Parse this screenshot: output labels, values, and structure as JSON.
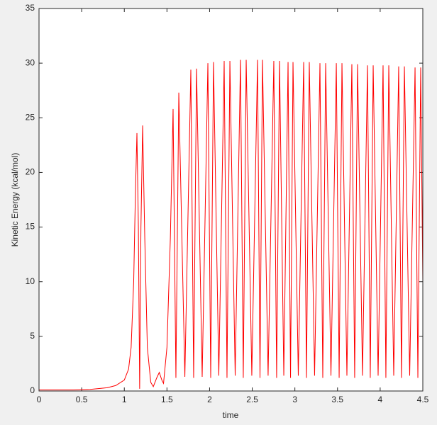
{
  "chart_data": {
    "type": "line",
    "xlabel": "time",
    "ylabel": "Kinetic Energy (kcal/mol)",
    "xlim": [
      0,
      4.5
    ],
    "ylim": [
      0,
      35
    ],
    "xticks": [
      0,
      0.5,
      1,
      1.5,
      2,
      2.5,
      3,
      3.5,
      4,
      4.5
    ],
    "yticks": [
      0,
      5,
      10,
      15,
      20,
      25,
      30,
      35
    ],
    "grid": false,
    "series": [
      {
        "color": "#ff0000",
        "x": [
          0,
          0.2,
          0.4,
          0.6,
          0.8,
          0.9,
          1.0,
          1.05,
          1.08,
          1.11,
          1.13,
          1.148,
          1.165,
          1.18,
          1.195,
          1.215,
          1.24,
          1.27,
          1.31,
          1.34,
          1.38,
          1.41,
          1.44,
          1.46,
          1.5,
          1.54,
          1.572,
          1.605,
          1.639,
          1.71,
          1.78,
          1.813,
          1.847,
          1.913,
          1.98,
          2.013,
          2.046,
          2.108,
          2.171,
          2.204,
          2.238,
          2.3,
          2.362,
          2.395,
          2.429,
          2.495,
          2.562,
          2.591,
          2.62,
          2.686,
          2.753,
          2.786,
          2.82,
          2.87,
          2.92,
          2.949,
          2.978,
          3.04,
          3.103,
          3.136,
          3.169,
          3.231,
          3.294,
          3.327,
          3.361,
          3.423,
          3.486,
          3.519,
          3.552,
          3.61,
          3.668,
          3.701,
          3.735,
          3.793,
          3.851,
          3.884,
          3.918,
          3.976,
          4.034,
          4.067,
          4.101,
          4.159,
          4.217,
          4.25,
          4.284,
          4.346,
          4.409,
          4.442,
          4.475,
          4.5
        ],
        "values": [
          0.1,
          0.1,
          0.1,
          0.15,
          0.3,
          0.5,
          1.0,
          2,
          4,
          10,
          18,
          23.6,
          15,
          0.2,
          15,
          24.3,
          14,
          4,
          0.8,
          0.4,
          1.2,
          1.7,
          1.0,
          0.7,
          4,
          14,
          25.8,
          1.2,
          27.3,
          1.3,
          29.4,
          1.2,
          29.5,
          1.3,
          30.0,
          1.2,
          30.1,
          1.4,
          30.2,
          1.2,
          30.2,
          1.4,
          30.3,
          1.2,
          30.3,
          1.4,
          30.3,
          1.2,
          30.3,
          1.4,
          30.2,
          1.2,
          30.2,
          1.4,
          30.1,
          1.2,
          30.1,
          1.4,
          30.1,
          1.2,
          30.1,
          1.4,
          30.0,
          1.2,
          30.0,
          1.4,
          30.0,
          1.2,
          30.0,
          1.4,
          29.9,
          1.2,
          29.9,
          1.4,
          29.8,
          1.2,
          29.8,
          1.4,
          29.8,
          1.2,
          29.8,
          1.4,
          29.7,
          1.2,
          29.7,
          1.4,
          29.6,
          1.2,
          29.6,
          10
        ]
      }
    ]
  }
}
